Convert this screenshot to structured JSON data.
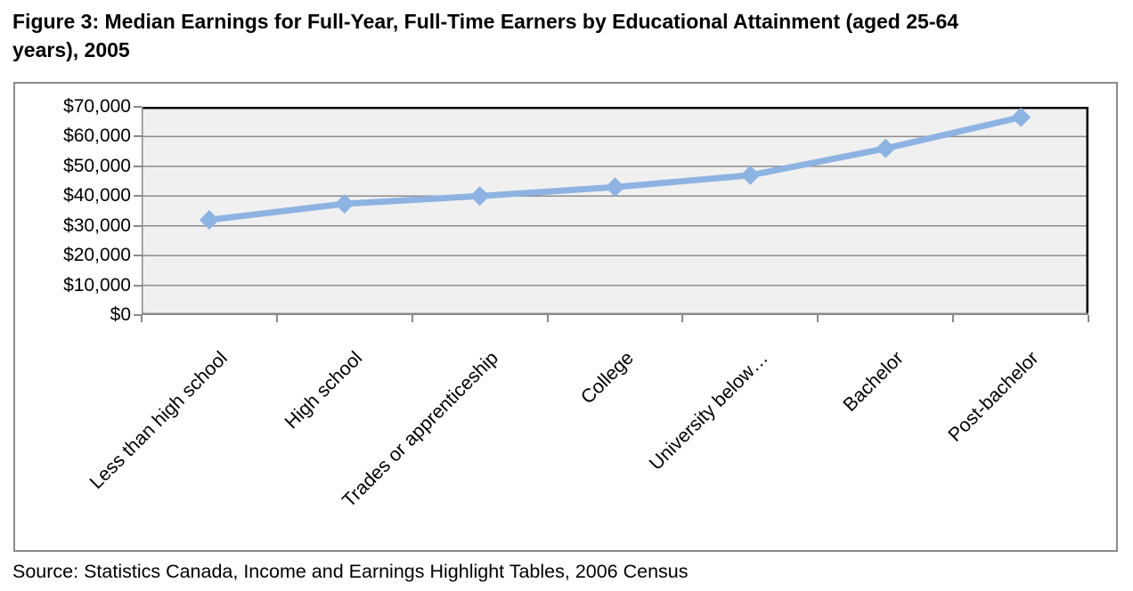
{
  "figure": {
    "title_lines": [
      "Figure 3: Median Earnings for Full-Year, Full-Time Earners by Educational Attainment (aged 25-64",
      "years), 2005"
    ],
    "source": "Source: Statistics Canada, Income and Earnings Highlight Tables, 2006 Census"
  },
  "chart_data": {
    "type": "line",
    "title": "",
    "xlabel": "",
    "ylabel": "",
    "categories": [
      "Less than high school",
      "High school",
      "Trades or apprenticeship",
      "College",
      "University below…",
      "Bachelor",
      "Post-bachelor"
    ],
    "series": [
      {
        "name": "Median earnings",
        "values": [
          32000,
          37400,
          40000,
          43000,
          47000,
          56000,
          66500
        ]
      }
    ],
    "ylim": [
      0,
      70000
    ],
    "ytick_labels": [
      "$0",
      "$10,000",
      "$20,000",
      "$30,000",
      "$40,000",
      "$50,000",
      "$60,000",
      "$70,000"
    ],
    "grid": true,
    "legend": "none",
    "marker": "diamond",
    "colors": {
      "series": "#8DB3E2",
      "plot_bg": "#F0F0F0",
      "grid": "#8C8C8C",
      "axis": "#8A8A8A",
      "plot_border_dark": "#000000",
      "frame_border": "#8A8A8A"
    }
  }
}
